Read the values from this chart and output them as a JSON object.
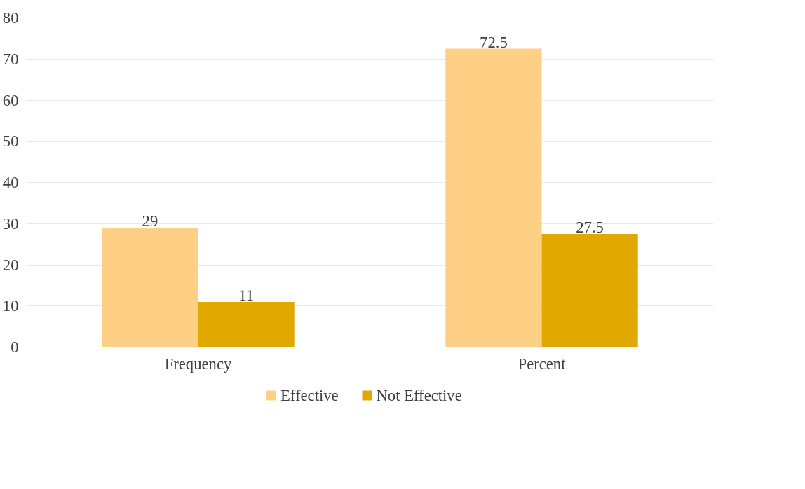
{
  "chart_data": {
    "type": "bar",
    "categories": [
      "Frequency",
      "Percent"
    ],
    "series": [
      {
        "name": "Effective",
        "color": "#fdd085",
        "values": [
          29,
          72.5
        ]
      },
      {
        "name": "Not Effective",
        "color": "#e0a800",
        "values": [
          11,
          27.5
        ]
      }
    ],
    "ylim": [
      0,
      80
    ],
    "yticks": [
      0,
      10,
      20,
      30,
      40,
      50,
      60,
      70,
      80
    ],
    "grid": "y",
    "legend": "bottom",
    "data_labels": true
  }
}
